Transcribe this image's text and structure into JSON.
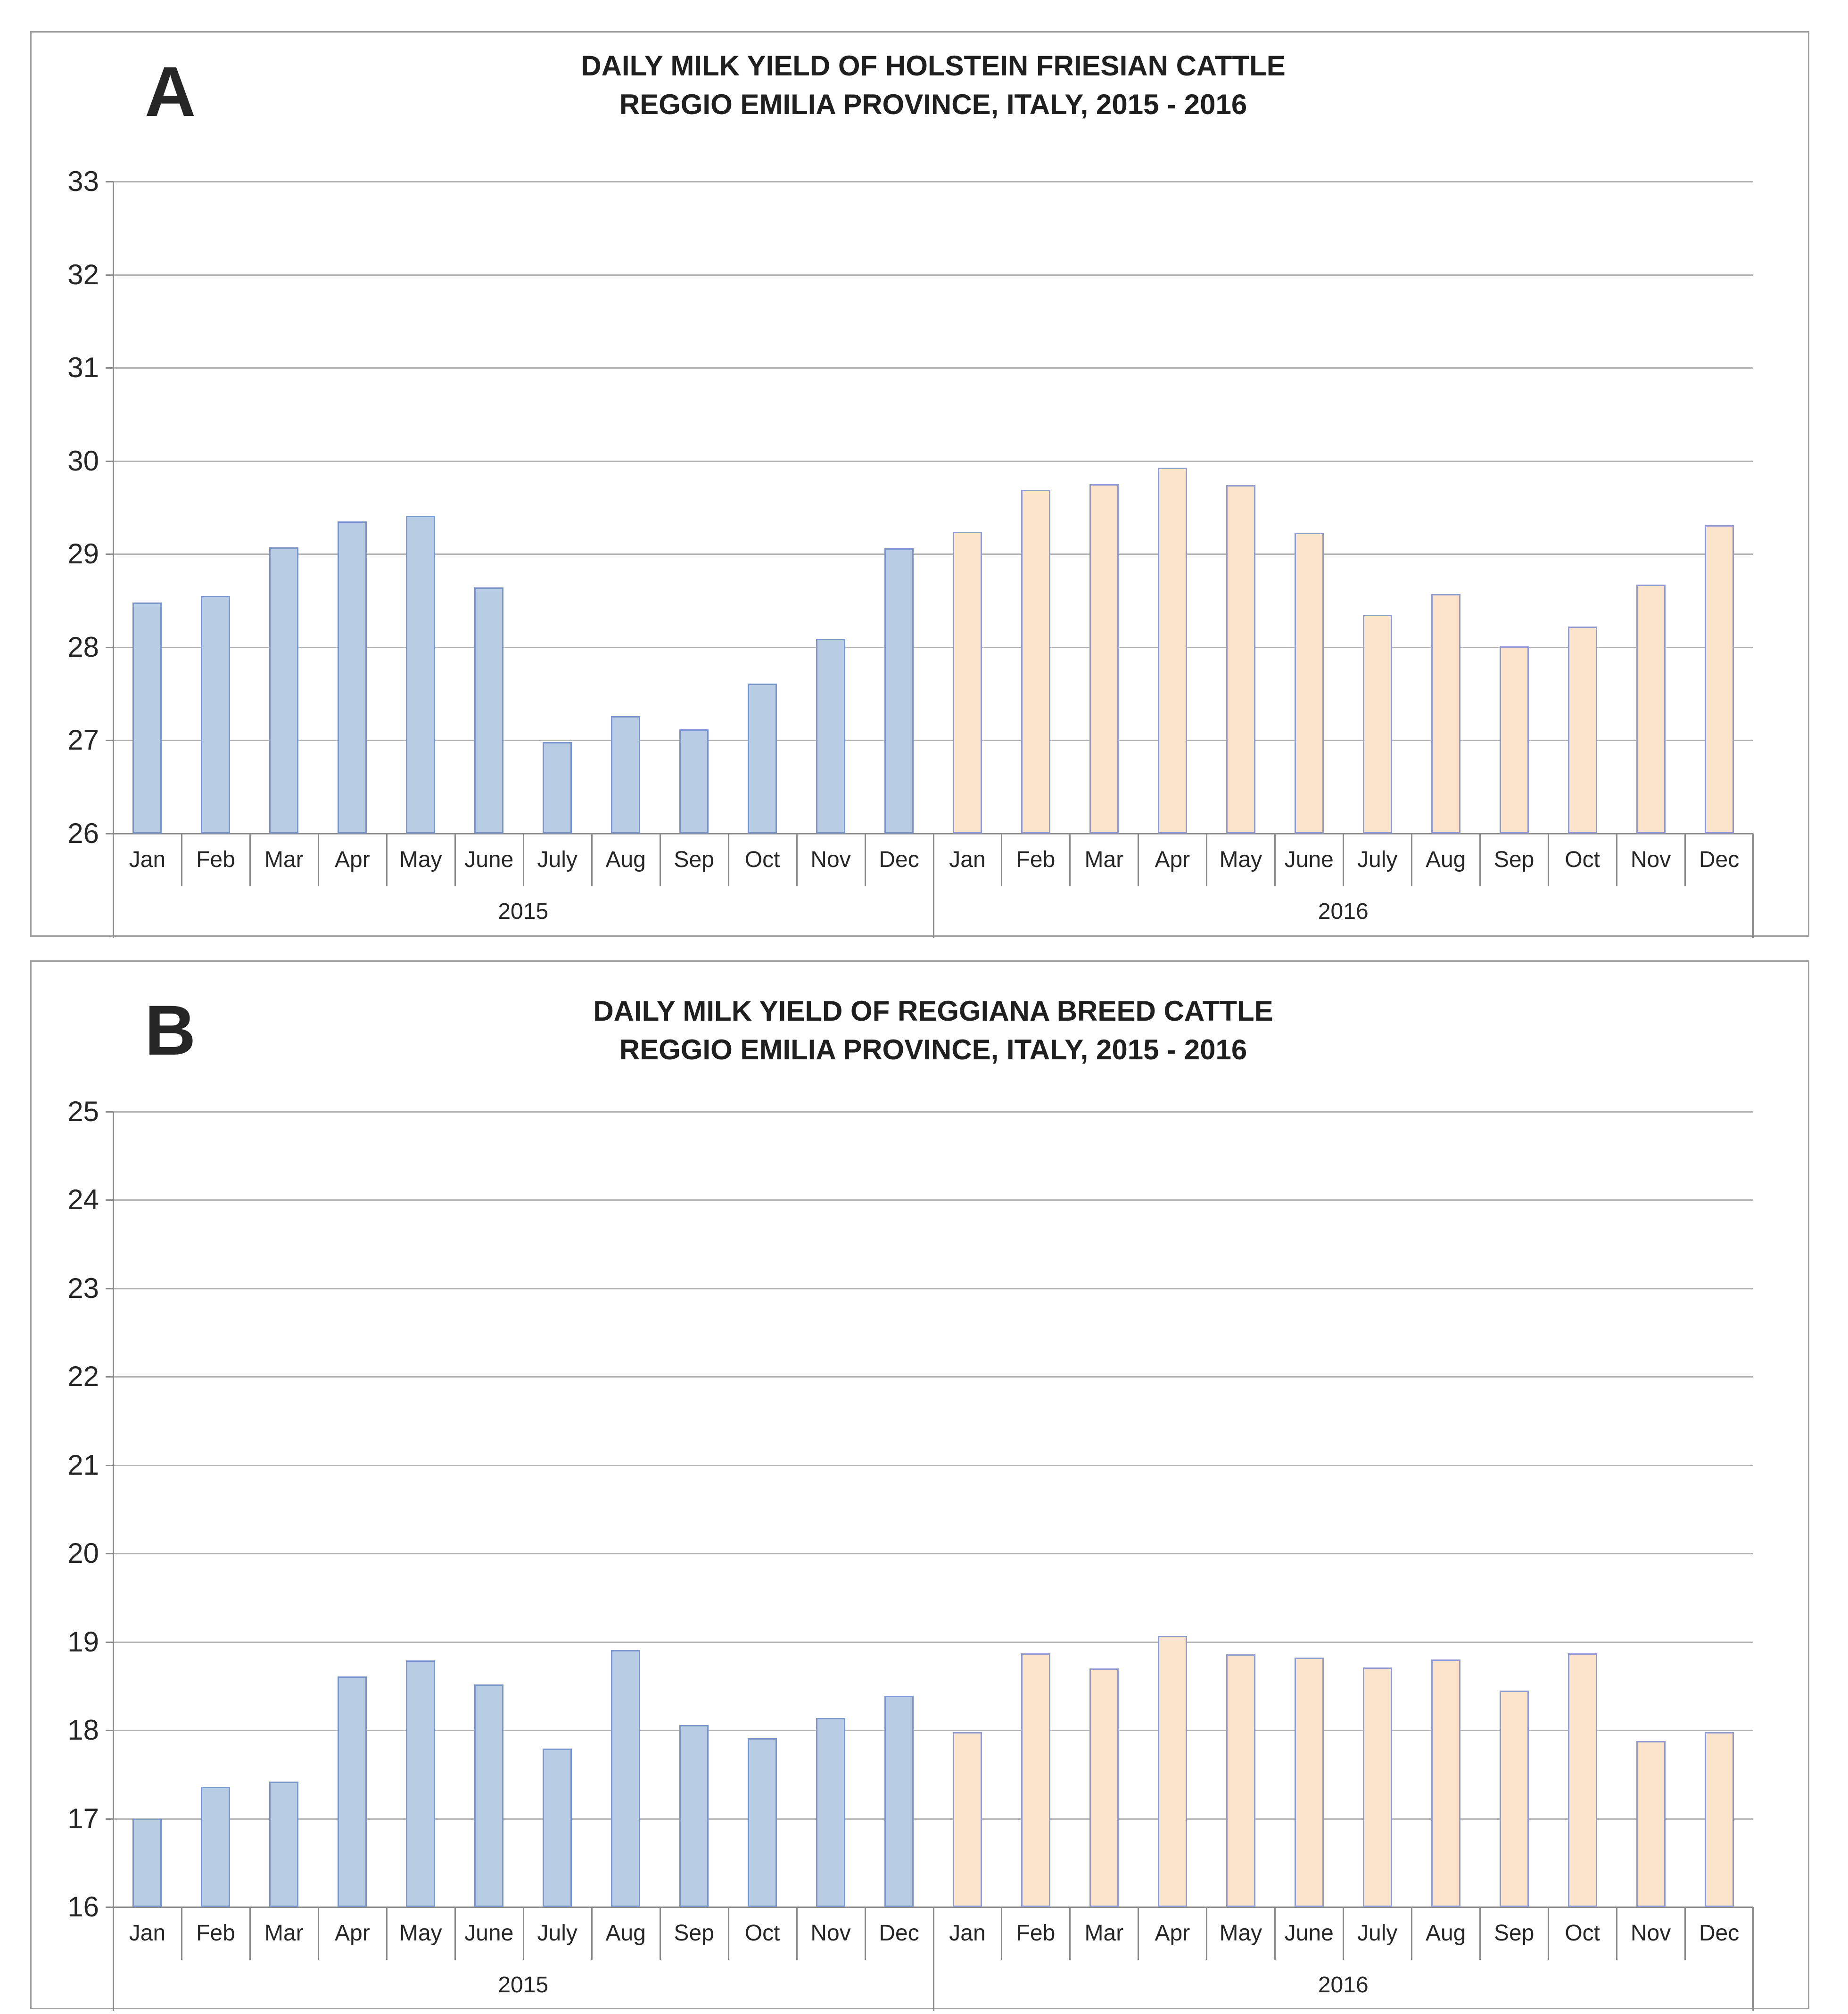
{
  "colors": {
    "bar_2015_fill": "#b8cce4",
    "bar_2015_border": "#7b96cc",
    "bar_2016_fill": "#fce4ca",
    "bar_2016_border": "#929ad2",
    "gridline": "#b3b3b3",
    "axis": "#8a8a8a",
    "panel_border": "#9e9e9e",
    "text": "#1f1f1f"
  },
  "figure": {
    "panels": [
      {
        "label": "A",
        "title_line1": "DAILY MILK YIELD OF HOLSTEIN FRIESIAN CATTLE",
        "title_line2": "REGGIO EMILIA PROVINCE, ITALY, 2015 - 2016"
      },
      {
        "label": "B",
        "title_line1": "DAILY MILK YIELD OF REGGIANA BREED CATTLE",
        "title_line2": "REGGIO EMILIA PROVINCE, ITALY, 2015 - 2016"
      }
    ]
  },
  "chart_data": [
    {
      "type": "bar",
      "title": "DAILY MILK YIELD OF HOLSTEIN FRIESIAN CATTLE",
      "subtitle": "REGGIO EMILIA PROVINCE, ITALY, 2015 - 2016",
      "categories": [
        "Jan",
        "Feb",
        "Mar",
        "Apr",
        "May",
        "June",
        "July",
        "Aug",
        "Sep",
        "Oct",
        "Nov",
        "Dec"
      ],
      "group_labels": [
        "2015",
        "2016"
      ],
      "series": [
        {
          "name": "2015",
          "values": [
            28.48,
            28.55,
            29.07,
            29.35,
            29.41,
            28.64,
            26.98,
            27.26,
            27.12,
            27.61,
            28.09,
            29.06
          ]
        },
        {
          "name": "2016",
          "values": [
            29.24,
            29.69,
            29.75,
            29.93,
            29.74,
            29.23,
            28.35,
            28.57,
            28.01,
            28.22,
            28.67,
            29.31
          ]
        }
      ],
      "xlabel": "",
      "ylabel": "",
      "ylim": [
        26,
        33
      ],
      "ytick_step": 1,
      "yticks": [
        26,
        27,
        28,
        29,
        30,
        31,
        32,
        33
      ],
      "grid": true,
      "legend": "none"
    },
    {
      "type": "bar",
      "title": "DAILY MILK YIELD OF REGGIANA BREED CATTLE",
      "subtitle": "REGGIO EMILIA PROVINCE, ITALY, 2015 - 2016",
      "categories": [
        "Jan",
        "Feb",
        "Mar",
        "Apr",
        "May",
        "June",
        "July",
        "Aug",
        "Sep",
        "Oct",
        "Nov",
        "Dec"
      ],
      "group_labels": [
        "2015",
        "2016"
      ],
      "series": [
        {
          "name": "2015",
          "values": [
            17.0,
            17.36,
            17.42,
            18.61,
            18.79,
            18.52,
            17.79,
            18.91,
            18.06,
            17.91,
            18.14,
            18.39
          ]
        },
        {
          "name": "2016",
          "values": [
            17.98,
            18.87,
            18.7,
            19.07,
            18.86,
            18.82,
            18.71,
            18.8,
            18.45,
            18.87,
            17.88,
            17.98
          ]
        }
      ],
      "xlabel": "",
      "ylabel": "",
      "ylim": [
        16,
        25
      ],
      "ytick_step": 1,
      "yticks": [
        16,
        17,
        18,
        19,
        20,
        21,
        22,
        23,
        24,
        25
      ],
      "grid": true,
      "legend": "none"
    }
  ]
}
